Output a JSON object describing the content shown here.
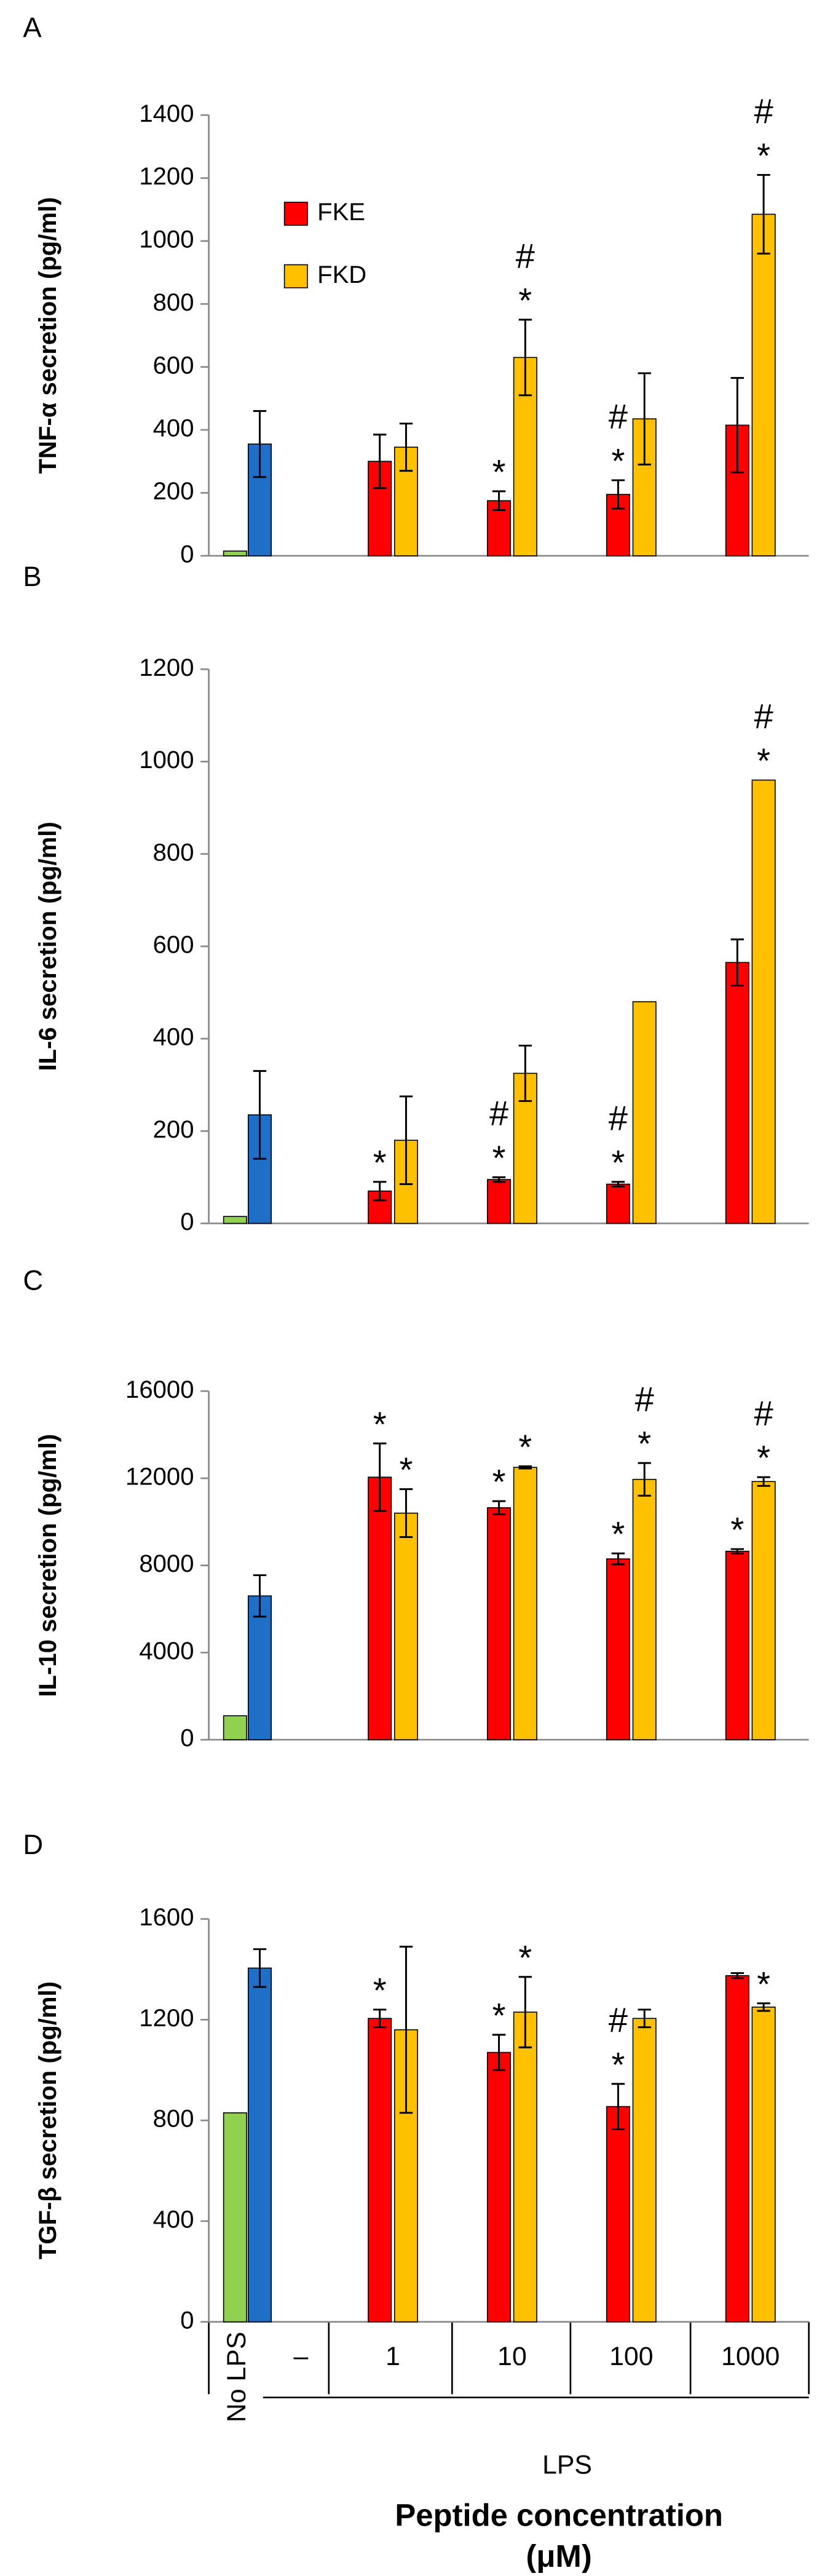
{
  "chart_data": [
    {
      "type": "bar",
      "panel": "A",
      "y_label": "TNF-α secretion (pg/ml)",
      "ylim": [
        0,
        1400
      ],
      "yticks": [
        0,
        200,
        400,
        600,
        800,
        1000,
        1200,
        1400
      ],
      "legend": "upper left",
      "series": [
        {
          "color": "#92d050",
          "values": [
            15,
            null,
            null,
            null,
            null,
            null
          ],
          "errors": [
            null,
            null,
            null,
            null,
            null,
            null
          ]
        },
        {
          "color": "#1f6fc8",
          "values": [
            null,
            355,
            null,
            null,
            null,
            null
          ],
          "errors": [
            null,
            105,
            null,
            null,
            null,
            null
          ]
        },
        {
          "name": "FKE",
          "color": "#ff0000",
          "values": [
            null,
            null,
            300,
            175,
            195,
            415
          ],
          "errors": [
            null,
            null,
            85,
            30,
            45,
            150
          ],
          "markers": [
            null,
            null,
            null,
            [
              "*"
            ],
            [
              "#",
              "*"
            ],
            null
          ]
        },
        {
          "name": "FKD",
          "color": "#ffc000",
          "values": [
            null,
            null,
            345,
            630,
            435,
            1085
          ],
          "errors": [
            null,
            null,
            75,
            120,
            145,
            125
          ],
          "markers": [
            null,
            null,
            null,
            [
              "#",
              "*"
            ],
            null,
            [
              "#",
              "*"
            ]
          ]
        }
      ]
    },
    {
      "type": "bar",
      "panel": "B",
      "y_label": "IL-6 secretion (pg/ml)",
      "ylim": [
        0,
        1200
      ],
      "yticks": [
        0,
        200,
        400,
        600,
        800,
        1000,
        1200
      ],
      "series": [
        {
          "color": "#92d050",
          "values": [
            15,
            null,
            null,
            null,
            null,
            null
          ],
          "errors": [
            null,
            null,
            null,
            null,
            null,
            null
          ]
        },
        {
          "color": "#1f6fc8",
          "values": [
            null,
            235,
            null,
            null,
            null,
            null
          ],
          "errors": [
            null,
            95,
            null,
            null,
            null,
            null
          ]
        },
        {
          "color": "#ff0000",
          "values": [
            null,
            null,
            70,
            95,
            85,
            565
          ],
          "errors": [
            null,
            null,
            20,
            5,
            5,
            50
          ],
          "markers": [
            null,
            null,
            [
              "*"
            ],
            [
              "#",
              "*"
            ],
            [
              "#",
              "*"
            ],
            null
          ]
        },
        {
          "color": "#ffc000",
          "values": [
            null,
            null,
            180,
            325,
            480,
            960
          ],
          "errors": [
            null,
            null,
            95,
            60,
            null,
            null
          ],
          "markers": [
            null,
            null,
            null,
            null,
            null,
            [
              "#",
              "*"
            ]
          ]
        }
      ]
    },
    {
      "type": "bar",
      "panel": "C",
      "y_label": "IL-10 secretion (pg/ml)",
      "ylim": [
        0,
        16000
      ],
      "yticks": [
        0,
        4000,
        8000,
        12000,
        16000
      ],
      "series": [
        {
          "color": "#92d050",
          "values": [
            1100,
            null,
            null,
            null,
            null,
            null
          ],
          "errors": [
            null,
            null,
            null,
            null,
            null,
            null
          ]
        },
        {
          "color": "#1f6fc8",
          "values": [
            null,
            6600,
            null,
            null,
            null,
            null
          ],
          "errors": [
            null,
            950,
            null,
            null,
            null,
            null
          ]
        },
        {
          "color": "#ff0000",
          "values": [
            null,
            null,
            12050,
            10650,
            8300,
            8650
          ],
          "errors": [
            null,
            null,
            1550,
            300,
            250,
            100
          ],
          "markers": [
            null,
            null,
            [
              "*"
            ],
            [
              "*"
            ],
            [
              "*"
            ],
            [
              "*"
            ]
          ]
        },
        {
          "color": "#ffc000",
          "values": [
            null,
            null,
            10400,
            12500,
            11950,
            11850
          ],
          "errors": [
            null,
            null,
            1100,
            50,
            750,
            200
          ],
          "markers": [
            null,
            null,
            [
              "*"
            ],
            [
              "*"
            ],
            [
              "#",
              "*"
            ],
            [
              "#",
              "*"
            ]
          ]
        }
      ]
    },
    {
      "type": "bar",
      "panel": "D",
      "y_label": "TGF-β  secretion (pg/ml)",
      "ylim": [
        0,
        1600
      ],
      "yticks": [
        0,
        400,
        800,
        1200,
        1600
      ],
      "series": [
        {
          "color": "#92d050",
          "values": [
            830,
            null,
            null,
            null,
            null,
            null
          ],
          "errors": [
            null,
            null,
            null,
            null,
            null,
            null
          ]
        },
        {
          "color": "#1f6fc8",
          "values": [
            null,
            1405,
            null,
            null,
            null,
            null
          ],
          "errors": [
            null,
            75,
            null,
            null,
            null,
            null
          ]
        },
        {
          "color": "#ff0000",
          "values": [
            null,
            null,
            1205,
            1070,
            855,
            1375
          ],
          "errors": [
            null,
            null,
            35,
            70,
            90,
            10
          ],
          "markers": [
            null,
            null,
            [
              "*"
            ],
            [
              "*"
            ],
            [
              "#",
              "*"
            ],
            null
          ]
        },
        {
          "color": "#ffc000",
          "values": [
            null,
            null,
            1160,
            1230,
            1205,
            1250
          ],
          "errors": [
            null,
            null,
            330,
            140,
            35,
            15
          ],
          "markers": [
            null,
            null,
            null,
            [
              "*"
            ],
            null,
            [
              "*"
            ]
          ]
        }
      ]
    }
  ],
  "x_axis": {
    "categories": [
      "No LPS",
      "–",
      "1",
      "10",
      "100",
      "1000"
    ],
    "group_label": "LPS",
    "title": "Peptide concentration (μM)"
  }
}
